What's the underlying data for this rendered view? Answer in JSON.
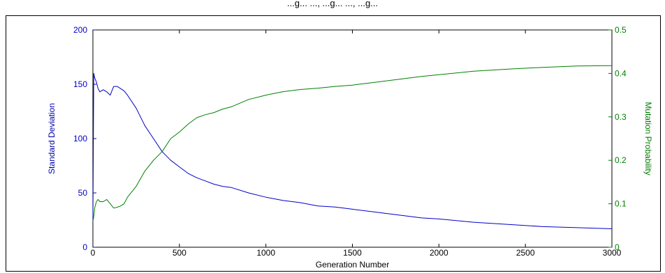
{
  "title": "...g... ..., ...g... ..., ...g...",
  "colors": {
    "left_axis": "#0000aa",
    "right_axis": "#007a00",
    "std_line": "#0000c8",
    "mut_line": "#008000",
    "frame": "#000000"
  },
  "chart_data": {
    "type": "line",
    "title": "",
    "xlabel": "Generation Number",
    "ylabel_left": "Standard Deviation",
    "ylabel_right": "Mutation Probability",
    "xlim": [
      0,
      3000
    ],
    "ylim_left": [
      0,
      200
    ],
    "ylim_right": [
      0,
      0.5
    ],
    "grid": false,
    "legend": "none",
    "x_ticks": [
      "0",
      "500",
      "1000",
      "1500",
      "2000",
      "2500",
      "3000"
    ],
    "y_left_ticks": [
      "0",
      "50",
      "100",
      "150",
      "200"
    ],
    "y_right_ticks": [
      "0",
      "0.1",
      "0.2",
      "0.3",
      "0.4",
      "0.5"
    ],
    "series": [
      {
        "axis": "left",
        "color": "#0000c8",
        "x": [
          0,
          5,
          10,
          20,
          30,
          40,
          60,
          80,
          100,
          120,
          140,
          160,
          180,
          200,
          250,
          300,
          350,
          400,
          450,
          500,
          550,
          600,
          650,
          700,
          750,
          800,
          900,
          1000,
          1100,
          1200,
          1300,
          1400,
          1500,
          1600,
          1700,
          1800,
          1900,
          2000,
          2200,
          2400,
          2600,
          2800,
          3000
        ],
        "values": [
          25,
          160,
          156,
          152,
          146,
          143,
          145,
          143,
          140,
          148,
          148,
          146,
          144,
          140,
          128,
          112,
          100,
          88,
          80,
          74,
          68,
          64,
          61,
          58,
          56,
          55,
          50,
          46,
          43,
          41,
          38,
          37,
          35,
          33,
          31,
          29,
          27,
          26,
          23,
          21,
          19,
          18,
          17
        ]
      },
      {
        "axis": "right",
        "color": "#008000",
        "x": [
          0,
          5,
          10,
          20,
          30,
          40,
          60,
          80,
          100,
          120,
          140,
          160,
          180,
          200,
          250,
          300,
          350,
          400,
          450,
          500,
          550,
          600,
          650,
          700,
          750,
          800,
          900,
          1000,
          1100,
          1200,
          1300,
          1400,
          1500,
          1600,
          1700,
          1800,
          1900,
          2000,
          2200,
          2400,
          2600,
          2800,
          3000
        ],
        "values": [
          0.06,
          0.07,
          0.09,
          0.105,
          0.11,
          0.105,
          0.105,
          0.11,
          0.1,
          0.09,
          0.092,
          0.095,
          0.1,
          0.115,
          0.14,
          0.175,
          0.2,
          0.22,
          0.25,
          0.265,
          0.283,
          0.298,
          0.305,
          0.31,
          0.318,
          0.323,
          0.34,
          0.35,
          0.358,
          0.363,
          0.366,
          0.37,
          0.373,
          0.378,
          0.383,
          0.388,
          0.393,
          0.397,
          0.405,
          0.41,
          0.414,
          0.417,
          0.418
        ]
      }
    ]
  }
}
